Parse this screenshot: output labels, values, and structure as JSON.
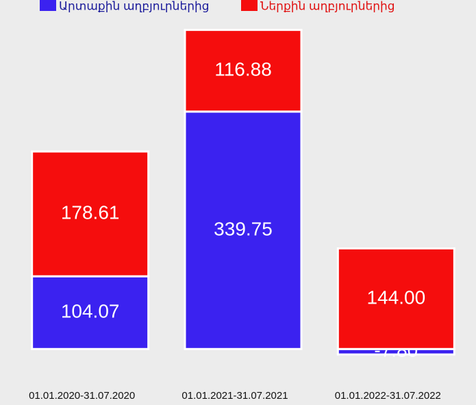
{
  "chart_data": {
    "type": "stacked_bar",
    "categories": [
      "01.01.2020-31.07.2020",
      "01.01.2021-31.07.2021",
      "01.01.2022-31.07.2022"
    ],
    "series": [
      {
        "name": "Արտաքին աղբյուրներից",
        "color": "#3b22f0",
        "values": [
          104.07,
          339.75,
          -7.8
        ],
        "value_labels": [
          "104.07",
          "339.75",
          "-7.80"
        ]
      },
      {
        "name": "Ներքին աղբյուրներից",
        "color": "#f50d0d",
        "values": [
          178.61,
          116.88,
          144.0
        ],
        "value_labels": [
          "178.61",
          "116.88",
          "144.00"
        ]
      }
    ],
    "ylim": [
      -35,
      470
    ],
    "legend": "top"
  }
}
